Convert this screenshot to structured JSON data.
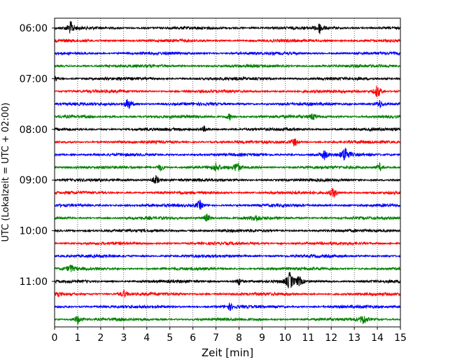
{
  "chart_data": {
    "type": "line",
    "title": "",
    "xlabel": "Zeit  [min]",
    "ylabel": "UTC (Lokalzeit = UTC + 02:00)",
    "xlim": [
      0,
      15
    ],
    "x_ticks": [
      "0",
      "1",
      "2",
      "3",
      "4",
      "5",
      "6",
      "7",
      "8",
      "9",
      "10",
      "11",
      "12",
      "13",
      "14",
      "15"
    ],
    "y_ticks": [
      "06:00",
      "07:00",
      "08:00",
      "09:00",
      "10:00",
      "11:00"
    ],
    "grid": "vertical dotted at each minute",
    "line_colors": [
      "#000000",
      "#ff0000",
      "#0000ff",
      "#008000"
    ],
    "trace_start_times": [
      "06:00",
      "06:15",
      "06:30",
      "06:45",
      "07:00",
      "07:15",
      "07:30",
      "07:45",
      "08:00",
      "08:15",
      "08:30",
      "08:45",
      "09:00",
      "09:15",
      "09:30",
      "09:45",
      "10:00",
      "10:15",
      "10:30",
      "10:45",
      "11:00",
      "11:15",
      "11:30",
      "11:45"
    ],
    "events": [
      {
        "trace": 0,
        "minute": 0.7,
        "amp": 0.6
      },
      {
        "trace": 0,
        "minute": 11.5,
        "amp": 0.5
      },
      {
        "trace": 4,
        "minute": 0.0,
        "amp": 0.3
      },
      {
        "trace": 5,
        "minute": 14.0,
        "amp": 0.7
      },
      {
        "trace": 6,
        "minute": 3.2,
        "amp": 0.6
      },
      {
        "trace": 6,
        "minute": 14.1,
        "amp": 0.4
      },
      {
        "trace": 7,
        "minute": 7.6,
        "amp": 0.3
      },
      {
        "trace": 7,
        "minute": 11.2,
        "amp": 0.3
      },
      {
        "trace": 8,
        "minute": 6.5,
        "amp": 0.25
      },
      {
        "trace": 9,
        "minute": 10.4,
        "amp": 0.4
      },
      {
        "trace": 10,
        "minute": 11.7,
        "amp": 0.45
      },
      {
        "trace": 10,
        "minute": 12.6,
        "amp": 0.8
      },
      {
        "trace": 11,
        "minute": 4.6,
        "amp": 0.35
      },
      {
        "trace": 11,
        "minute": 7.0,
        "amp": 0.4
      },
      {
        "trace": 11,
        "minute": 7.9,
        "amp": 0.5
      },
      {
        "trace": 11,
        "minute": 14.1,
        "amp": 0.35
      },
      {
        "trace": 12,
        "minute": 4.4,
        "amp": 0.45
      },
      {
        "trace": 13,
        "minute": 12.1,
        "amp": 0.5
      },
      {
        "trace": 14,
        "minute": 6.3,
        "amp": 0.45
      },
      {
        "trace": 15,
        "minute": 6.6,
        "amp": 0.4
      },
      {
        "trace": 15,
        "minute": 8.7,
        "amp": 0.35
      },
      {
        "trace": 19,
        "minute": 0.7,
        "amp": 0.35
      },
      {
        "trace": 20,
        "minute": 8.0,
        "amp": 0.35
      },
      {
        "trace": 20,
        "minute": 10.2,
        "amp": 0.85
      },
      {
        "trace": 20,
        "minute": 10.6,
        "amp": 0.45
      },
      {
        "trace": 21,
        "minute": 0.1,
        "amp": 0.3
      },
      {
        "trace": 21,
        "minute": 3.0,
        "amp": 0.35
      },
      {
        "trace": 22,
        "minute": 7.6,
        "amp": 0.3
      },
      {
        "trace": 23,
        "minute": 1.0,
        "amp": 0.45
      },
      {
        "trace": 23,
        "minute": 13.4,
        "amp": 0.5
      }
    ]
  }
}
